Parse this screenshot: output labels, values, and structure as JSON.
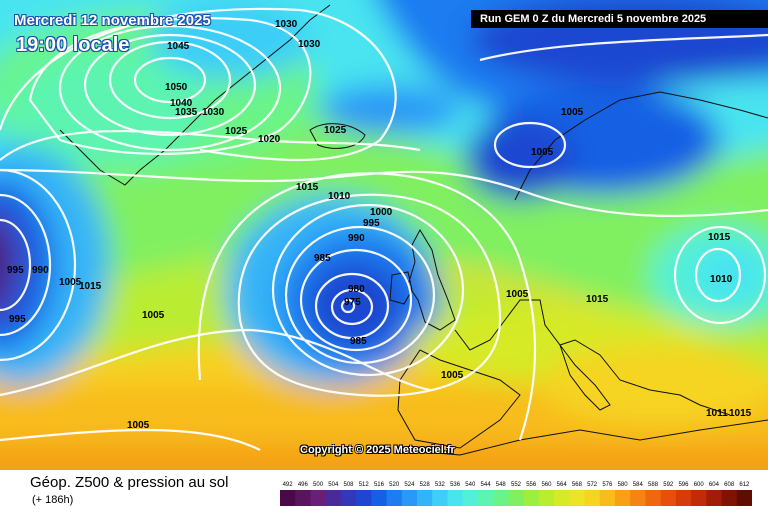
{
  "header": {
    "date": "Mercredi 12 novembre 2025",
    "time": "19:00 locale",
    "run": "Run GEM 0 Z du Mercredi 5 novembre 2025"
  },
  "map": {
    "copyright": "Copyright © 2025 Meteociel.fr",
    "isobar_labels": [
      "1030",
      "1030",
      "1045",
      "1050",
      "1040",
      "1035",
      "1030",
      "1025",
      "1020",
      "1025",
      "1015",
      "1010",
      "1000",
      "995",
      "990",
      "985",
      "980",
      "975",
      "985",
      "1005",
      "1005",
      "1015",
      "1005",
      "1015",
      "1010",
      "1005",
      "1011",
      "1015",
      "995",
      "990",
      "995",
      "1005",
      "1015",
      "1005",
      "1005"
    ]
  },
  "footer": {
    "title": "Géop. Z500 & pression au sol",
    "subtitle": "(+ 186h)"
  },
  "color_scale": {
    "labels": [
      "492",
      "496",
      "500",
      "504",
      "508",
      "512",
      "516",
      "520",
      "524",
      "528",
      "532",
      "536",
      "540",
      "544",
      "548",
      "552",
      "556",
      "560",
      "564",
      "568",
      "572",
      "576",
      "580",
      "584",
      "588",
      "592",
      "596",
      "600",
      "604",
      "608",
      "612"
    ],
    "colors": [
      "#4a0a4a",
      "#5a145e",
      "#6a1e78",
      "#4a2a9a",
      "#3238b8",
      "#1e46d0",
      "#1460e4",
      "#1e7cf0",
      "#2a98f6",
      "#34b4f8",
      "#3ecef8",
      "#48e4f0",
      "#52f0d8",
      "#5cf4b0",
      "#6af488",
      "#80f060",
      "#9cee40",
      "#baec30",
      "#d6ea28",
      "#ece424",
      "#f6d420",
      "#f8bc1c",
      "#f8a018",
      "#f48414",
      "#ee6810",
      "#e6500c",
      "#d63c0a",
      "#c02c08",
      "#a01e06",
      "#801404",
      "#600c02"
    ]
  }
}
